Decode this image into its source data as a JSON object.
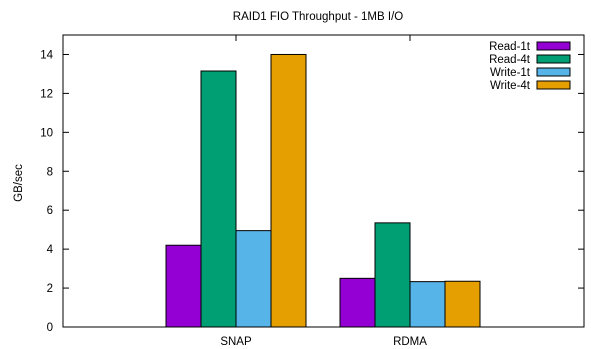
{
  "chart_data": {
    "type": "bar",
    "title": "RAID1 FIO Throughput - 1MB I/O",
    "xlabel": "",
    "ylabel": "GB/sec",
    "ylim": [
      0,
      15
    ],
    "yticks": [
      0,
      2,
      4,
      6,
      8,
      10,
      12,
      14
    ],
    "categories": [
      "SNAP",
      "RDMA"
    ],
    "series": [
      {
        "name": "Read-1t",
        "color": "#9400d3",
        "values": [
          4.2,
          2.5
        ]
      },
      {
        "name": "Read-4t",
        "color": "#009e73",
        "values": [
          13.15,
          5.35
        ]
      },
      {
        "name": "Write-1t",
        "color": "#56b4e9",
        "values": [
          4.95,
          2.33
        ]
      },
      {
        "name": "Write-4t",
        "color": "#e69f00",
        "values": [
          14.0,
          2.35
        ]
      }
    ],
    "legend_position": "top-right",
    "grid": false
  }
}
